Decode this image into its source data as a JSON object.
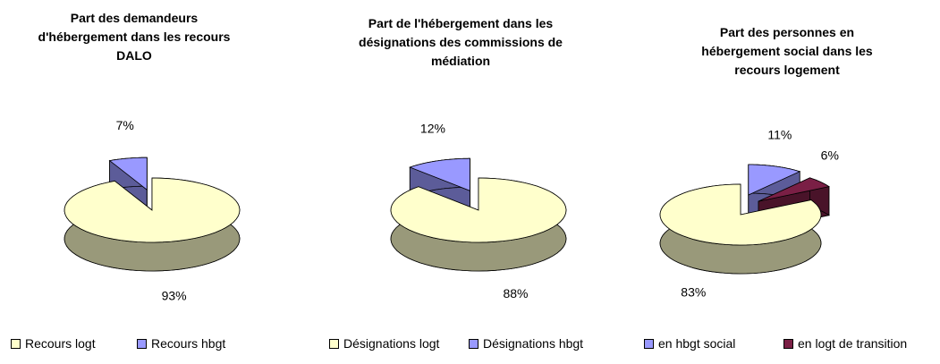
{
  "chart_data": [
    {
      "type": "pie",
      "title": "Part des demandeurs d'hébergement dans les recours DALO",
      "categories": [
        "Recours logt",
        "Recours hbgt"
      ],
      "values": [
        93,
        7
      ],
      "value_labels": [
        "93%",
        "7%"
      ],
      "colors": [
        "#ffffcc",
        "#9999ff"
      ]
    },
    {
      "type": "pie",
      "title": "Part de l'hébergement dans les désignations des commissions de médiation",
      "categories": [
        "Désignations logt",
        "Désignations hbgt"
      ],
      "values": [
        88,
        12
      ],
      "value_labels": [
        "88%",
        "12%"
      ],
      "colors": [
        "#ffffcc",
        "#9999ff"
      ]
    },
    {
      "type": "pie",
      "title": "Part des personnes en hébergement social dans les recours logement",
      "categories": [
        "en hbgt social",
        "en logt de transition",
        null
      ],
      "values": [
        11,
        6,
        83
      ],
      "value_labels": [
        "11%",
        "6%",
        "83%"
      ],
      "colors": [
        "#9999ff",
        "#7a1f45",
        "#ffffcc"
      ]
    }
  ]
}
